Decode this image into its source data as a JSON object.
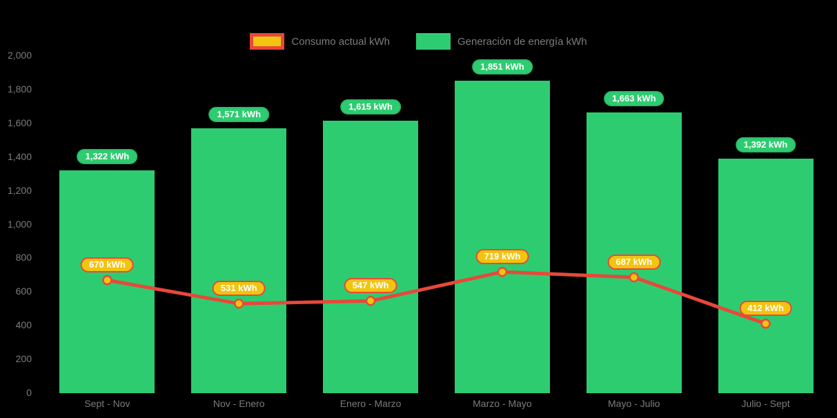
{
  "chart_data": {
    "type": "bar+line",
    "title": "",
    "xlabel": "",
    "ylabel": "",
    "categories": [
      "Sept - Nov",
      "Nov - Enero",
      "Enero - Marzo",
      "Marzo - Mayo",
      "Mayo - Julio",
      "Julio - Sept"
    ],
    "series": [
      {
        "name": "Consumo actual kWh",
        "type": "line",
        "values": [
          670,
          531,
          547,
          719,
          687,
          412
        ],
        "value_labels": [
          "670 kWh",
          "531 kWh",
          "547 kWh",
          "719 kWh",
          "687 kWh",
          "412 kWh"
        ],
        "line_color": "#e8483a",
        "marker_fill": "#f1c40f",
        "marker_stroke": "#e8483a",
        "label_bg": "#f1c40f",
        "label_border": "#e8483a"
      },
      {
        "name": "Generación de energía kWh",
        "type": "bar",
        "values": [
          1322,
          1571,
          1615,
          1851,
          1663,
          1392
        ],
        "value_labels": [
          "1,322 kWh",
          "1,571 kWh",
          "1,615 kWh",
          "1,851 kWh",
          "1,663 kWh",
          "1,392 kWh"
        ],
        "bar_color": "#2ecc71",
        "label_bg": "#2ecc71",
        "label_border": "#29bd68"
      }
    ],
    "ylim": [
      0,
      2000
    ],
    "y_ticks": [
      {
        "value": 0,
        "label": "0"
      },
      {
        "value": 200,
        "label": "200"
      },
      {
        "value": 400,
        "label": "400"
      },
      {
        "value": 600,
        "label": "600"
      },
      {
        "value": 800,
        "label": "800"
      },
      {
        "value": 1000,
        "label": "1,000"
      },
      {
        "value": 1200,
        "label": "1,200"
      },
      {
        "value": 1400,
        "label": "1,400"
      },
      {
        "value": 1600,
        "label": "1,600"
      },
      {
        "value": 1800,
        "label": "1,800"
      },
      {
        "value": 2000,
        "label": "2,000"
      }
    ],
    "grid": false,
    "legend_position": "top-center",
    "axis_text_color": "#7c7c7c",
    "legend_text_color": "#7c7c7c",
    "background": "#000000"
  }
}
